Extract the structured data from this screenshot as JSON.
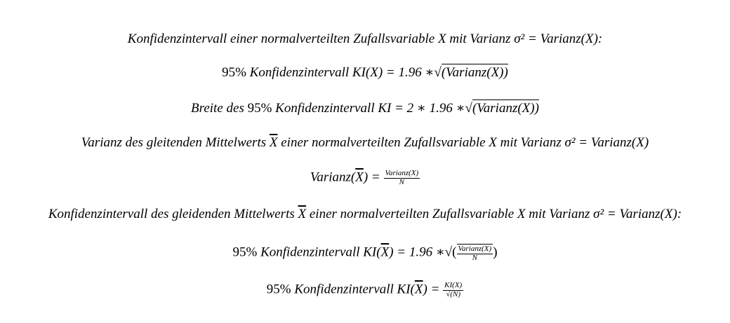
{
  "lines": {
    "l1": "Konfidenzintervall einer normalverteilten Zufallsvariable X mit Varianz σ² = Varianz(X):",
    "l2": {
      "pct": "95%",
      "text": "Konfidenzintervall KI(X) = 1.96 ∗",
      "arg": "(Varianz(X))"
    },
    "l3": {
      "a": "Breite des",
      "pct": "95%",
      "text": "Konfidenzintervall KI = 2 ∗ 1.96 ∗",
      "arg": "(Varianz(X))"
    },
    "l4a": "Varianz des gleitenden Mittelwerts",
    "l4x": "X",
    "l4b": "einer normalverteilten Zufallsvariable X mit Varianz σ² = Varianz(X)",
    "l5": {
      "left": "Varianz(",
      "x": "X",
      "mid": ") =",
      "num": "Varianz(X)",
      "den": "N"
    },
    "l6a": "Konfidenzintervall des gleidenden Mittelwerts",
    "l6x": "X",
    "l6b": "einer normalverteilten Zufallsvariable X mit Varianz σ² = Varianz(X):",
    "l7": {
      "pct": "95%",
      "text": "Konfidenzintervall KI(",
      "x": "X",
      "mid": ") = 1.96 ∗",
      "num": "Varianz(X)",
      "den": "N"
    },
    "l8": {
      "pct": "95%",
      "text": "Konfidenzintervall KI(",
      "x": "X",
      "mid": ") =",
      "num": "KI(X)",
      "den": "√(N)"
    }
  }
}
